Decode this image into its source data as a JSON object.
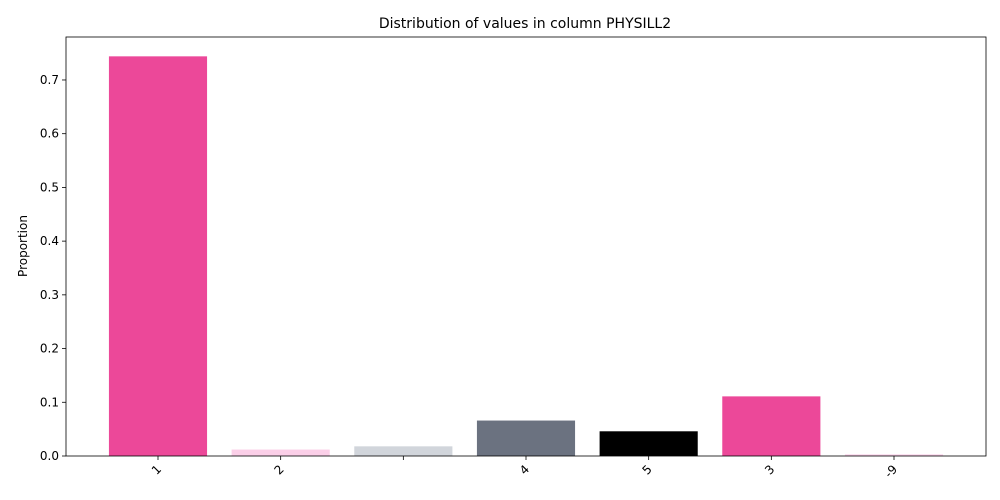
{
  "chart_data": {
    "type": "bar",
    "title": "Distribution of values in column PHYSILL2",
    "xlabel": "",
    "ylabel": "Proportion",
    "categories": [
      "1",
      "2",
      "",
      "4",
      "5",
      "3",
      "-9"
    ],
    "values": [
      0.744,
      0.012,
      0.018,
      0.066,
      0.046,
      0.111,
      0.003
    ],
    "colors": [
      "#ec4899",
      "#fbcfe8",
      "#d1d5db",
      "#6b7280",
      "#000000",
      "#ec4899",
      "#fbcfe8"
    ],
    "ylim": [
      0,
      0.78
    ],
    "yticks": [
      "0.0",
      "0.1",
      "0.2",
      "0.3",
      "0.4",
      "0.5",
      "0.6",
      "0.7"
    ],
    "grid": false,
    "legend": "none"
  }
}
